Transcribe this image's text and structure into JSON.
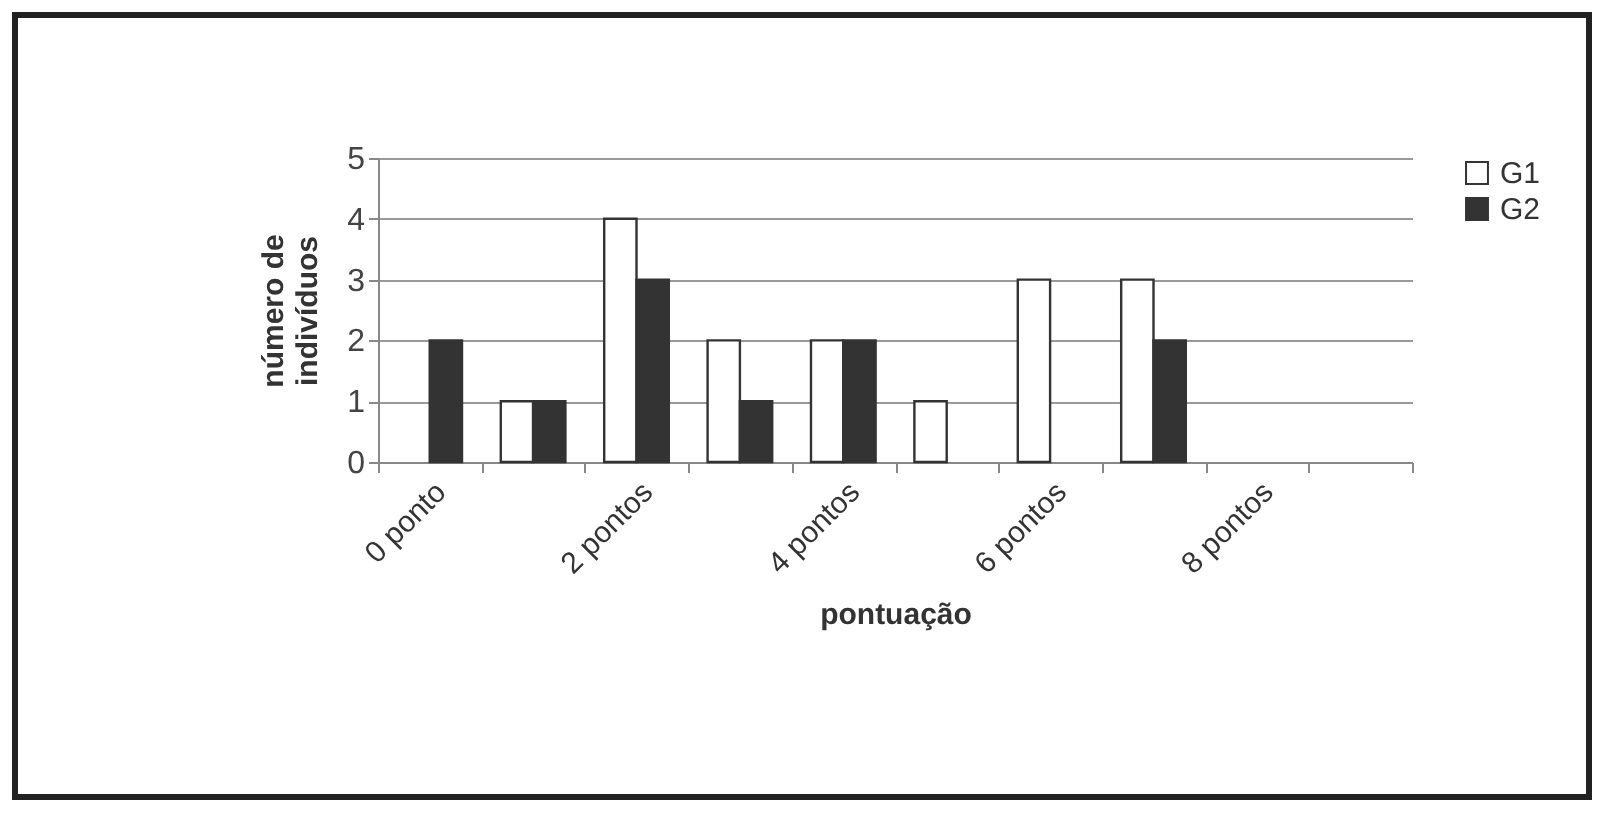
{
  "chart_data": {
    "type": "bar",
    "xlabel": "pontuação",
    "ylabel": "número de indivíduos",
    "categories": [
      "0 ponto",
      null,
      "2 pontos",
      null,
      "4 pontos",
      null,
      "6 pontos",
      null,
      "8 pontos",
      null
    ],
    "series": [
      {
        "name": "G1",
        "color": "#ffffff",
        "values": [
          null,
          1,
          4,
          2,
          2,
          1,
          3,
          3,
          null,
          null
        ]
      },
      {
        "name": "G2",
        "color": "#333333",
        "values": [
          2,
          1,
          3,
          1,
          2,
          null,
          null,
          2,
          null,
          null
        ]
      }
    ],
    "ylim": [
      0,
      5
    ],
    "yticks": [
      0,
      1,
      2,
      3,
      4,
      5
    ],
    "grid": "y",
    "legend": "right"
  }
}
